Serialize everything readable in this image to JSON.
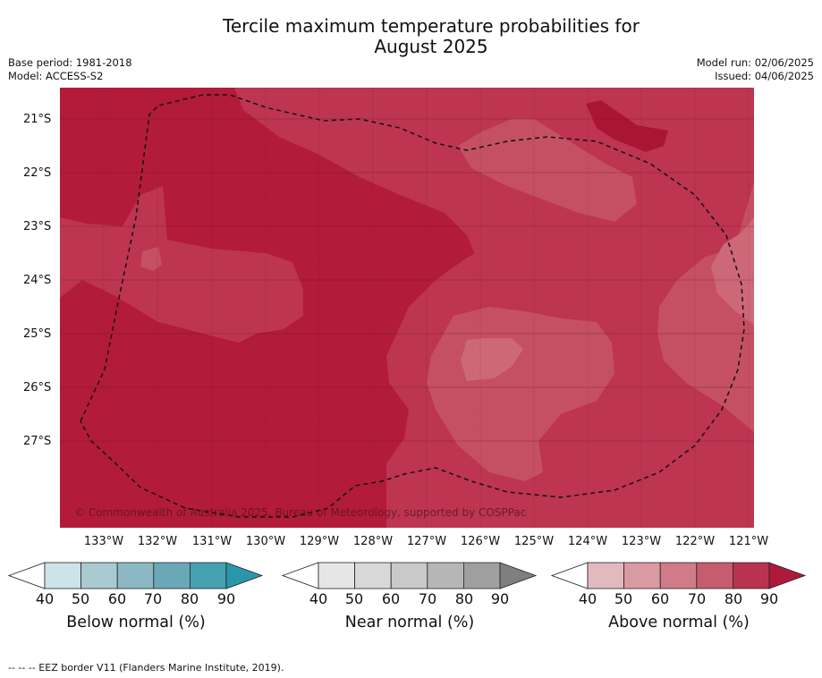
{
  "header": {
    "title_line1": "Tercile maximum temperature probabilities for",
    "title_line2": "August 2025",
    "base_period": "Base period: 1981-2018",
    "model": "Model: ACCESS-S2",
    "model_run": "Model run: 02/06/2025",
    "issued": "Issued: 04/06/2025"
  },
  "map": {
    "lat_labels": [
      "21°S",
      "22°S",
      "23°S",
      "24°S",
      "25°S",
      "26°S",
      "27°S"
    ],
    "lon_labels": [
      "133°W",
      "132°W",
      "131°W",
      "130°W",
      "129°W",
      "128°W",
      "127°W",
      "126°W",
      "125°W",
      "124°W",
      "123°W",
      "122°W",
      "121°W"
    ],
    "copyright": "© Commonwealth of Australia 2025, Bureau of Meteorology, supported by COSPPac",
    "colors": {
      "above_90": "#b31b3a",
      "above_80": "#bd3550",
      "above_70": "#c55064",
      "above_60": "#cd6878",
      "grid": "#5a1020",
      "eez_border": "#111111"
    }
  },
  "legends": {
    "ticks": [
      "40",
      "50",
      "60",
      "70",
      "80",
      "90"
    ],
    "below": {
      "title": "Below normal (%)",
      "colors": [
        "#ffffff",
        "#cce3e8",
        "#a9cad1",
        "#8bb8c4",
        "#6aa8b8",
        "#45a0b2",
        "#2a96ac"
      ]
    },
    "near": {
      "title": "Near normal (%)",
      "colors": [
        "#ffffff",
        "#e6e6e6",
        "#d8d8d8",
        "#c9c9c9",
        "#b6b6b6",
        "#a0a0a0",
        "#7f7f7f"
      ]
    },
    "above": {
      "title": "Above normal (%)",
      "colors": [
        "#ffffff",
        "#e3b9c0",
        "#d99aa3",
        "#d07b87",
        "#c55d6e",
        "#b93350",
        "#ad1a3b"
      ]
    }
  },
  "footnote": "--  --  -- EEZ border V11 (Flanders Marine Institute, 2019)."
}
